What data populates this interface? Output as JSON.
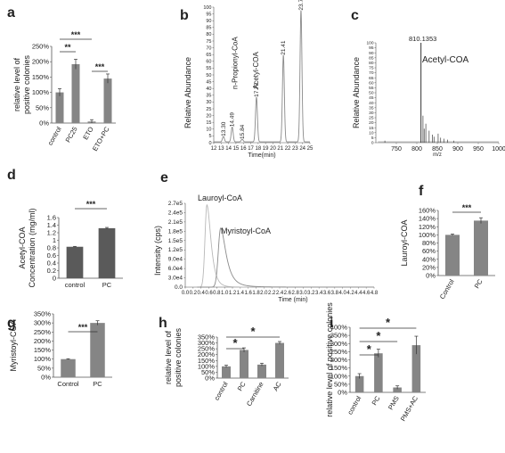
{
  "chart_data": [
    {
      "panel": "a",
      "type": "bar",
      "categories": [
        "control",
        "PC25",
        "ETO",
        "ETO+PC"
      ],
      "values": [
        100,
        192,
        5,
        145
      ],
      "errors": [
        12,
        16,
        6,
        15
      ],
      "ylabel": [
        "relative level of",
        "positive colonies"
      ],
      "yticks": [
        "0%",
        "50%",
        "100%",
        "150%",
        "200%",
        "250%"
      ],
      "ylim": [
        0,
        250
      ],
      "significance": [
        {
          "from": 0,
          "to": 1,
          "label": "**"
        },
        {
          "from": 0,
          "to": 2,
          "label": "***"
        },
        {
          "from": 2,
          "to": 3,
          "label": "***"
        }
      ]
    },
    {
      "panel": "b",
      "type": "line",
      "xlabel": "Time(min)",
      "ylabel": "Relative Abundance",
      "xlim": [
        12,
        25
      ],
      "ylim": [
        0,
        100
      ],
      "xticks": [
        "12",
        "13",
        "14",
        "15",
        "16",
        "17",
        "18",
        "19",
        "20",
        "21",
        "22",
        "23",
        "24",
        "25"
      ],
      "yticks": [
        "0",
        "5",
        "10",
        "15",
        "20",
        "25",
        "30",
        "35",
        "40",
        "45",
        "50",
        "55",
        "60",
        "65",
        "70",
        "75",
        "80",
        "85",
        "90",
        "95",
        "100"
      ],
      "peaks": [
        {
          "x": 13.3,
          "y": 4,
          "label": "13.30"
        },
        {
          "x": 14.49,
          "y": 11,
          "label": "14.49"
        },
        {
          "x": 15.84,
          "y": 2,
          "label": "15.84"
        },
        {
          "x": 17.77,
          "y": 33,
          "label": "17.77"
        },
        {
          "x": 21.41,
          "y": 64,
          "label": "21.41"
        },
        {
          "x": 23.79,
          "y": 97,
          "label": "23.79"
        }
      ],
      "annotations": [
        {
          "label": "n-Propionyl-CoA",
          "x": 15.2
        },
        {
          "label": "Acetyl-COA",
          "x": 18.0
        }
      ]
    },
    {
      "panel": "c",
      "type": "bar",
      "xlabel": "m/z",
      "ylabel": "Relative Abundance",
      "xlim": [
        700,
        1000
      ],
      "ylim": [
        0,
        100
      ],
      "xticks": [
        "750",
        "800",
        "850",
        "900",
        "950",
        "1000"
      ],
      "yticks": [
        "0",
        "5",
        "10",
        "15",
        "20",
        "25",
        "30",
        "35",
        "40",
        "45",
        "50",
        "55",
        "60",
        "65",
        "70",
        "75",
        "80",
        "85",
        "90",
        "95",
        "100"
      ],
      "main_peak": {
        "x": 810.1353,
        "y": 100,
        "label": "810.1353"
      },
      "compound": "Acetyl-COA",
      "minor_peaks": [
        {
          "x": 815,
          "y": 27
        },
        {
          "x": 818,
          "y": 14
        },
        {
          "x": 822,
          "y": 19
        },
        {
          "x": 830,
          "y": 12
        },
        {
          "x": 838,
          "y": 8
        },
        {
          "x": 842,
          "y": 6
        },
        {
          "x": 852,
          "y": 9
        },
        {
          "x": 858,
          "y": 5
        },
        {
          "x": 866,
          "y": 4
        },
        {
          "x": 875,
          "y": 3
        },
        {
          "x": 722,
          "y": 2
        },
        {
          "x": 890,
          "y": 2
        }
      ]
    },
    {
      "panel": "d",
      "type": "bar",
      "categories": [
        "control",
        "PC"
      ],
      "values": [
        0.83,
        1.32
      ],
      "errors": [
        0.01,
        0.02
      ],
      "ylabel": [
        "Acetyl-COA",
        "Concentration (mg/ml)"
      ],
      "yticks": [
        "0",
        "0.2",
        "0.4",
        "0.6",
        "0.8",
        "1",
        "1.2",
        "1.4",
        "1.6"
      ],
      "ylim": [
        0,
        1.6
      ],
      "significance": [
        {
          "from": 0,
          "to": 1,
          "label": "***"
        }
      ]
    },
    {
      "panel": "e",
      "type": "line",
      "xlabel": "Time (min)",
      "ylabel": "Intensity (cps)",
      "xlim": [
        0,
        4.8
      ],
      "ylim": [
        0,
        270000
      ],
      "xticks": [
        "0.0",
        "0.2",
        "0.4",
        "0.6",
        "0.8",
        "1.0",
        "1.2",
        "1.4",
        "1.6",
        "1.8",
        "2.0",
        "2.2",
        "2.4",
        "2.6",
        "2.8",
        "3.0",
        "3.2",
        "3.4",
        "3.6",
        "3.8",
        "4.0",
        "4.2",
        "4.4",
        "4.6",
        "4.8"
      ],
      "yticks": [
        "0.0",
        "3.0e4",
        "6.0e4",
        "9.0e4",
        "1.2e5",
        "1.5e5",
        "1.8e5",
        "2.1e5",
        "2.4e5",
        "2.7e5"
      ],
      "series": [
        {
          "name": "Lauroyl-CoA",
          "peak_x": 0.55,
          "peak_y": 265000,
          "width": 0.08
        },
        {
          "name": "Myristoyl-CoA",
          "peak_x": 0.9,
          "peak_y": 190000,
          "width": 0.1
        }
      ]
    },
    {
      "panel": "f",
      "type": "bar",
      "categories": [
        "Control",
        "PC"
      ],
      "values": [
        100,
        135
      ],
      "errors": [
        2,
        7
      ],
      "ylabel": "Lauroyl-COA",
      "yticks": [
        "0%",
        "20%",
        "40%",
        "60%",
        "80%",
        "100%",
        "120%",
        "140%",
        "160%"
      ],
      "ylim": [
        0,
        160
      ],
      "significance": [
        {
          "from": 0,
          "to": 1,
          "label": "***"
        }
      ]
    },
    {
      "panel": "g",
      "type": "bar",
      "categories": [
        "Control",
        "PC"
      ],
      "values": [
        100,
        300
      ],
      "errors": [
        2,
        12
      ],
      "ylabel": "Myristoyl-COA",
      "yticks": [
        "0%",
        "50%",
        "100%",
        "150%",
        "200%",
        "250%",
        "300%",
        "350%"
      ],
      "ylim": [
        0,
        350
      ],
      "significance": [
        {
          "from": 0,
          "to": 1,
          "label": "***"
        }
      ]
    },
    {
      "panel": "h",
      "type": "bar",
      "categories": [
        "control",
        "PC",
        "Carnitine",
        "AC"
      ],
      "values": [
        100,
        240,
        115,
        300
      ],
      "errors": [
        10,
        18,
        12,
        12
      ],
      "ylabel": [
        "relative level of",
        "positive colonies"
      ],
      "yticks": [
        "0%",
        "50%",
        "100%",
        "150%",
        "200%",
        "250%",
        "300%",
        "350%"
      ],
      "ylim": [
        0,
        350
      ],
      "significance": [
        {
          "from": 0,
          "to": 1,
          "label": "*"
        },
        {
          "from": 0,
          "to": 3,
          "label": "*"
        }
      ]
    },
    {
      "panel": "i",
      "type": "bar",
      "categories": [
        "control",
        "PC",
        "PMS",
        "PMS+AC"
      ],
      "values": [
        100,
        240,
        30,
        290
      ],
      "errors": [
        15,
        25,
        10,
        55
      ],
      "ylabel": "relative level of positive colonies",
      "yticks": [
        "0%",
        "50%",
        "100%",
        "150%",
        "200%",
        "250%",
        "300%",
        "350%",
        "400%"
      ],
      "ylim": [
        0,
        400
      ],
      "significance": [
        {
          "from": 0,
          "to": 1,
          "label": "*"
        },
        {
          "from": 0,
          "to": 2,
          "label": "*"
        },
        {
          "from": 0,
          "to": 3,
          "label": "*"
        }
      ]
    }
  ],
  "colors": {
    "bar": "#858585",
    "bar_dark": "#5a5a5a",
    "axis": "#555555",
    "trace": "#8a8a8a",
    "trace_light": "#b8b8b8"
  }
}
